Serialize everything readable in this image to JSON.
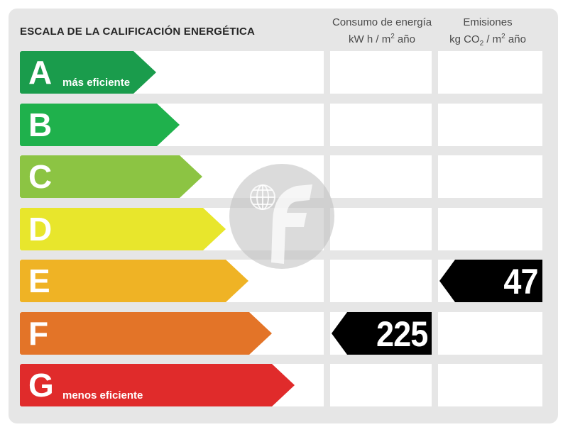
{
  "chart_data": {
    "type": "table",
    "title": "ESCALA DE LA CALIFICACIÓN ENERGÉTICA",
    "columns": [
      {
        "id": "consumo",
        "label_line1": "Consumo de energía",
        "label_line2_prefix": "kW h  / m",
        "label_line2_sup": "2",
        "label_line2_suffix": " año"
      },
      {
        "id": "emisiones",
        "label_line1": "Emisiones",
        "label_line2_prefix": "kg CO",
        "label_line2_sub": "2",
        "label_line2_mid": "  / m",
        "label_line2_sup": "2",
        "label_line2_suffix": " año"
      }
    ],
    "bands": [
      {
        "letter": "A",
        "note": "más eficiente",
        "color": "#1a9c4c"
      },
      {
        "letter": "B",
        "note": "",
        "color": "#1fb14c"
      },
      {
        "letter": "C",
        "note": "",
        "color": "#8cc443"
      },
      {
        "letter": "D",
        "note": "",
        "color": "#e8e62c"
      },
      {
        "letter": "E",
        "note": "",
        "color": "#efb325"
      },
      {
        "letter": "F",
        "note": "",
        "color": "#e37428"
      },
      {
        "letter": "G",
        "note": "menos eficiente",
        "color": "#e02b2b"
      }
    ],
    "ratings": [
      {
        "column": "consumo",
        "band": "F",
        "value": 225
      },
      {
        "column": "emisiones",
        "band": "E",
        "value": 47
      }
    ]
  },
  "background_color": "#e6e6e6",
  "indicator_color": "#000000",
  "watermark_icon": "brand-f-globe-icon"
}
